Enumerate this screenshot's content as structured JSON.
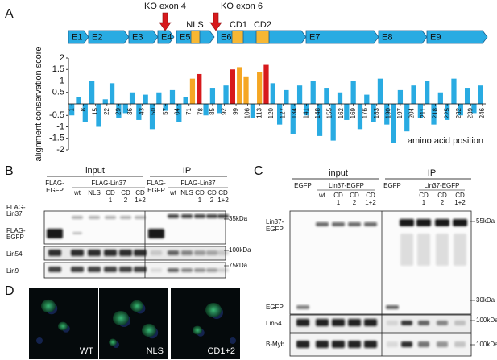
{
  "chart_data": {
    "type": "bar",
    "ylabel": "alignment conservation score",
    "xlabel": "amino acid position",
    "x": [
      1,
      5,
      9,
      13,
      17,
      21,
      25,
      29,
      33,
      37,
      41,
      45,
      49,
      53,
      57,
      61,
      65,
      69,
      73,
      77,
      81,
      85,
      89,
      93,
      97,
      101,
      105,
      109,
      113,
      117,
      121,
      125,
      129,
      133,
      137,
      141,
      145,
      149,
      153,
      157,
      161,
      165,
      169,
      173,
      177,
      181,
      185,
      189,
      193,
      197,
      201,
      205,
      209,
      213,
      217,
      221,
      225,
      229,
      233,
      237,
      241,
      245
    ],
    "values": [
      -0.5,
      0.3,
      -0.8,
      1.0,
      -1.0,
      0.2,
      0.9,
      -0.6,
      -0.4,
      0.5,
      -0.7,
      0.4,
      -1.1,
      0.5,
      -0.3,
      0.6,
      -0.8,
      0.3,
      1.1,
      1.3,
      -0.5,
      0.7,
      -0.4,
      0.8,
      1.5,
      1.6,
      1.2,
      -0.6,
      1.4,
      1.7,
      0.9,
      -0.9,
      0.6,
      -1.3,
      0.8,
      -0.5,
      1.0,
      -1.4,
      0.7,
      -1.6,
      0.5,
      -0.7,
      1.0,
      -1.1,
      0.4,
      -0.8,
      1.1,
      -0.9,
      -1.7,
      0.6,
      -1.2,
      0.8,
      -0.6,
      1.0,
      -0.9,
      0.5,
      -0.7,
      1.1,
      -0.5,
      0.7,
      -0.4,
      0.8
    ],
    "colors": [
      "#29abe2",
      "#29abe2",
      "#29abe2",
      "#29abe2",
      "#29abe2",
      "#29abe2",
      "#29abe2",
      "#29abe2",
      "#29abe2",
      "#29abe2",
      "#29abe2",
      "#29abe2",
      "#29abe2",
      "#29abe2",
      "#29abe2",
      "#29abe2",
      "#29abe2",
      "#29abe2",
      "#f5a623",
      "#d7191c",
      "#29abe2",
      "#29abe2",
      "#29abe2",
      "#29abe2",
      "#d7191c",
      "#f5a623",
      "#f5a623",
      "#29abe2",
      "#f5a623",
      "#d7191c",
      "#29abe2",
      "#29abe2",
      "#29abe2",
      "#29abe2",
      "#29abe2",
      "#29abe2",
      "#29abe2",
      "#29abe2",
      "#29abe2",
      "#29abe2",
      "#29abe2",
      "#29abe2",
      "#29abe2",
      "#29abe2",
      "#29abe2",
      "#29abe2",
      "#29abe2",
      "#29abe2",
      "#29abe2",
      "#29abe2",
      "#29abe2",
      "#29abe2",
      "#29abe2",
      "#29abe2",
      "#29abe2",
      "#29abe2",
      "#29abe2",
      "#29abe2",
      "#29abe2",
      "#29abe2",
      "#29abe2",
      "#29abe2"
    ],
    "xlim": [
      -1,
      248
    ],
    "ylim": [
      -2,
      2
    ],
    "yticks": [
      2,
      1.5,
      1,
      0.5,
      -0.5,
      -1,
      -1.5,
      -2
    ],
    "xticks": [
      1,
      8,
      15,
      22,
      29,
      36,
      43,
      50,
      57,
      64,
      71,
      78,
      85,
      92,
      99,
      106,
      113,
      120,
      127,
      134,
      141,
      148,
      155,
      162,
      169,
      176,
      183,
      190,
      197,
      204,
      211,
      218,
      225,
      232,
      239,
      246
    ]
  },
  "panel_labels": [
    "A",
    "B",
    "C",
    "D"
  ],
  "gene_map": {
    "exons": [
      "E1",
      "E2",
      "E3",
      "E4",
      "E5",
      "E6",
      "E7",
      "E8",
      "E9"
    ],
    "domains": [
      "NLS",
      "CD1",
      "CD2"
    ],
    "knockouts": [
      "KO exon 4",
      "KO exon 6"
    ]
  },
  "panel_b": {
    "groups": [
      {
        "name": "input",
        "control": [
          "FLAG-",
          "EGFP"
        ],
        "construct": "FLAG-Lin37",
        "lanes": [
          [
            "wt"
          ],
          [
            "NLS"
          ],
          [
            "CD",
            "1"
          ],
          [
            "CD",
            "2"
          ],
          [
            "CD",
            "1+2"
          ]
        ]
      },
      {
        "name": "IP",
        "control": [
          "FLAG-",
          "EGFP"
        ],
        "construct": "FLAG-Lin37",
        "lanes": [
          [
            "wt"
          ],
          [
            "NLS"
          ],
          [
            "CD",
            "1"
          ],
          [
            "CD",
            "2"
          ],
          [
            "CD",
            "1+2"
          ]
        ]
      }
    ],
    "rows": [
      [
        "FLAG-",
        "Lin37"
      ],
      [
        "FLAG-",
        "EGFP"
      ],
      [
        "Lin54"
      ],
      [
        "Lin9"
      ]
    ],
    "markers": [
      "35kDa",
      "100kDa",
      "75kDa"
    ]
  },
  "panel_c": {
    "groups": [
      {
        "name": "input",
        "control": [
          "EGFP"
        ],
        "construct": "Lin37-EGFP",
        "lanes": [
          [
            "wt"
          ],
          [
            "CD",
            "1"
          ],
          [
            "CD",
            "2"
          ],
          [
            "CD",
            "1+2"
          ]
        ]
      },
      {
        "name": "IP",
        "control": [
          "EGFP"
        ],
        "construct": "Lin37-EGFP",
        "lanes": [
          [
            "CD",
            "1"
          ],
          [
            "CD",
            "2"
          ],
          [
            "CD",
            "1+2"
          ]
        ]
      }
    ],
    "rows": [
      [
        "Lin37-",
        "EGFP"
      ],
      [
        "EGFP"
      ],
      [
        "Lin54"
      ],
      [
        "B-Myb"
      ]
    ],
    "markers": [
      "55kDa",
      "30kDa",
      "100kDa",
      "100kDa"
    ]
  },
  "panel_d": {
    "labels": [
      "WT",
      "NLS",
      "CD1+2"
    ]
  }
}
